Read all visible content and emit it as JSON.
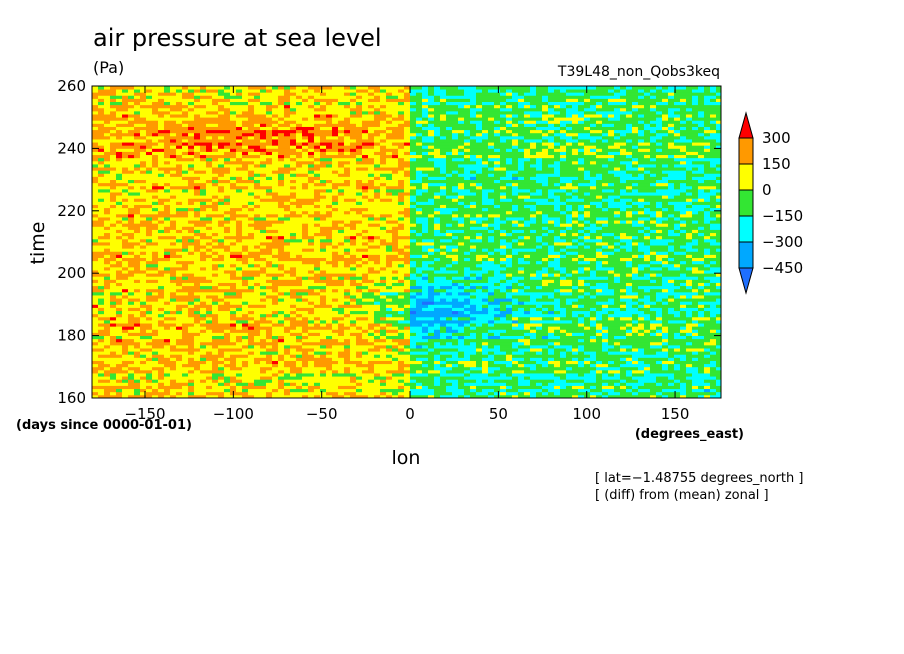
{
  "chart_data": {
    "type": "heatmap",
    "title": "air pressure at sea level",
    "units": "(Pa)",
    "experiment": "T39L48_non_Qobs3keq",
    "xlabel": "lon",
    "ylabel": "time",
    "x_units": "(degrees_east)",
    "y_units": "(days since 0000-01-01)",
    "xlim": [
      -180,
      176
    ],
    "ylim": [
      160,
      260
    ],
    "xticks": [
      -150,
      -100,
      -50,
      0,
      50,
      100,
      150
    ],
    "yticks": [
      160,
      180,
      200,
      220,
      240,
      260
    ],
    "xtick_labels": [
      "−150",
      "−100",
      "−50",
      "0",
      "50",
      "100",
      "150"
    ],
    "ytick_labels": [
      "160",
      "180",
      "200",
      "220",
      "240",
      "260"
    ],
    "notes": [
      "[ lat=−1.48755 degrees_north ]",
      "[ (diff) from (mean) zonal ]"
    ],
    "colorbar": {
      "levels": [
        -450,
        -300,
        -150,
        0,
        150,
        300
      ],
      "level_labels": [
        "−450",
        "−300",
        "−150",
        "0",
        "150",
        "300"
      ],
      "colors": [
        "#1e6fff",
        "#00a8ff",
        "#00ffff",
        "#33e633",
        "#ffff00",
        "#ff9900",
        "#ff0000"
      ]
    },
    "pattern_summary": {
      "west_of_0_mean": 120,
      "east_of_0_mean": -110,
      "cold_spot": {
        "x": 15,
        "y": 188,
        "value": -350
      },
      "warm_band": {
        "x": -90,
        "y": 244,
        "value": 250
      }
    }
  }
}
